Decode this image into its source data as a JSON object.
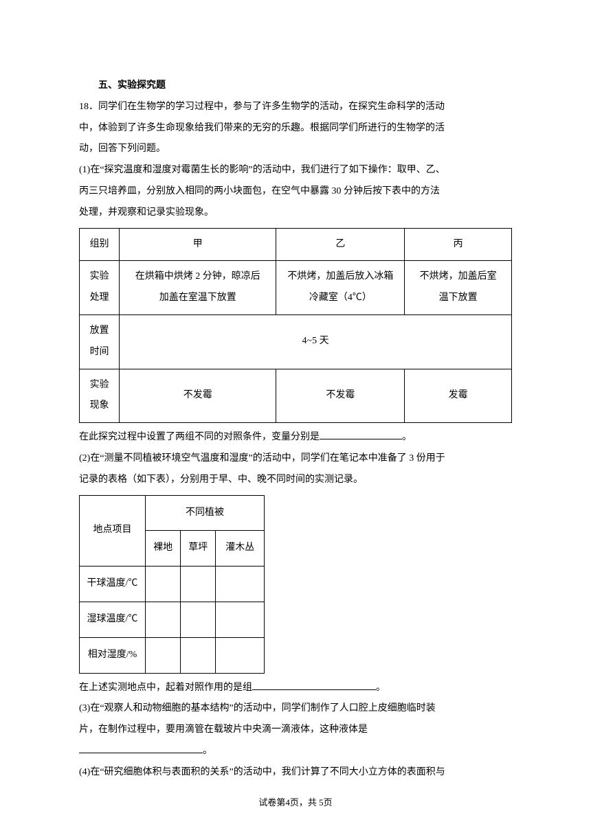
{
  "section": {
    "title": "五、实验探究题"
  },
  "q18": {
    "lead_a": "18．同学们在生物学的学习过程中，参与了许多生物学的活动，在探究生命科学的活动",
    "lead_b": "中，体验到了许多生命现象给我们带来的无穷的乐趣。根据同学们所进行的生物学的活",
    "lead_c": "动，回答下列问题。",
    "p1a": "(1)在“探究温度和湿度对霉菌生长的影响”的活动中，我们进行了如下操作：取甲、乙、",
    "p1b": "丙三只培养皿，分别放入相同的两小块面包，在空气中暴露 30 分钟后按下表中的方法",
    "p1c": "处理，并观察和记录实验现象。",
    "after_t1_a": "在此探究过程中设置了两组不同的对照条件，变量分别是",
    "after_t1_b": "。",
    "p2a": "(2)在“测量不同植被环境空气温度和湿度”的活动中，同学们在笔记本中准备了 3 份用于",
    "p2b": "记录的表格（如下表），分别用于早、中、晚不同时间的实测记录。",
    "after_t2_a": "在上述实测地点中，起着对照作用的是组",
    "after_t2_b": "。",
    "p3a": "(3)在“观察人和动物细胞的基本结构”的活动中，同学们制作了人口腔上皮细胞临时装",
    "p3b": "片，在制作过程中，要用滴管在载玻片中央滴一滴液体，这种液体是",
    "p3c": "。",
    "p4a": "(4)在“研究细胞体积与表面积的关系”的活动中，我们计算了不同大小立方体的表面积与"
  },
  "table1": {
    "col_label": "组别",
    "col_a": "甲",
    "col_b": "乙",
    "col_c": "丙",
    "row1_label_a": "实验",
    "row1_label_b": "处理",
    "row1_a_1": "在烘箱中烘烤 2 分钟，晾凉后",
    "row1_a_2": "加盖在室温下放置",
    "row1_b_1": "不烘烤，加盖后放入冰箱",
    "row1_b_2": "冷藏室（4℃）",
    "row1_c_1": "不烘烤，加盖后室",
    "row1_c_2": "温下放置",
    "row2_label_a": "放置",
    "row2_label_b": "时间",
    "row2_val": "4~5 天",
    "row3_label_a": "实验",
    "row3_label_b": "现象",
    "row3_a": "不发霉",
    "row3_b": "不发霉",
    "row3_c": "发霉"
  },
  "table2": {
    "header_rowspan": "地点项目",
    "header_colspan": "不同植被",
    "sub1": "裸地",
    "sub2": "草坪",
    "sub3": "灌木丛",
    "row1": "干球温度/℃",
    "row2": "湿球温度/℃",
    "row3": "相对湿度/%"
  },
  "footer": {
    "text": "试卷第4页，共 5页"
  }
}
